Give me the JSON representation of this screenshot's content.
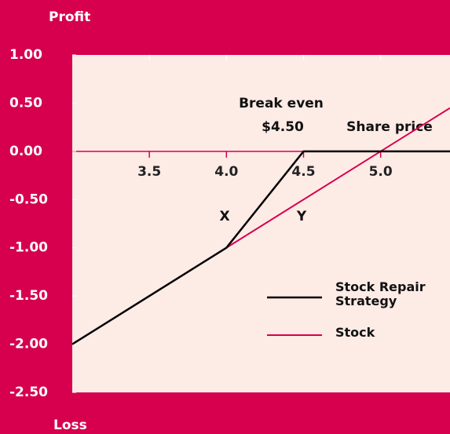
{
  "chart_data": {
    "type": "line",
    "axis_label_top": "Profit",
    "axis_label_bottom": "Loss",
    "annotations": [
      "Break even",
      "$4.50",
      "Share price",
      "X",
      "Y"
    ],
    "series": [
      {
        "name": "Stock Repair Strategy",
        "color": "#000000",
        "x": [
          3.0,
          4.0,
          4.5,
          5.45
        ],
        "values": [
          -2.0,
          -1.0,
          0.0,
          0.0
        ]
      },
      {
        "name": "Stock",
        "color": "#d6004f",
        "x": [
          3.0,
          5.45
        ],
        "values": [
          -2.0,
          0.45
        ]
      }
    ],
    "xlim": [
      3.0,
      5.45
    ],
    "xticks": [
      3.5,
      {
        "value": 4,
        "label": "4.0"
      },
      4.5,
      {
        "value": 5,
        "label": "5.0"
      }
    ],
    "ylim": [
      -2.5,
      1.0
    ],
    "yticks": [
      {
        "value": 1,
        "label": "1.00"
      },
      {
        "value": 0.5,
        "label": "0.50"
      },
      {
        "value": 0,
        "label": "0.00"
      },
      {
        "value": -0.5,
        "label": "-0.50"
      },
      {
        "value": -1,
        "label": "-1.00"
      },
      {
        "value": -1.5,
        "label": "-1.50"
      },
      {
        "value": -2,
        "label": "-2.00"
      },
      {
        "value": -2.5,
        "label": "-2.50"
      }
    ],
    "grid": false
  }
}
